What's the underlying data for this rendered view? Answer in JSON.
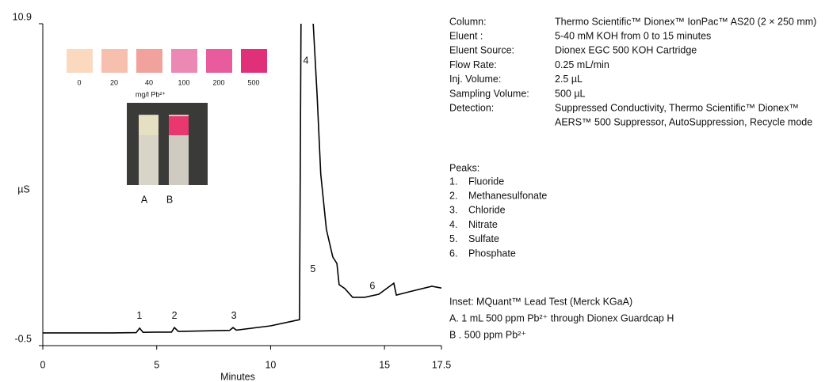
{
  "chart_data": {
    "type": "line",
    "y_label": "µS",
    "x_label": "Minutes",
    "x": [
      0,
      3,
      4.1,
      4.25,
      4.4,
      5.0,
      5.65,
      5.78,
      5.95,
      7.0,
      8.2,
      8.35,
      8.5,
      10.0,
      11.27,
      11.34,
      11.87,
      12.04,
      12.2,
      12.45,
      12.73,
      12.91,
      13.01,
      13.26,
      13.6,
      14.13,
      14.75,
      15.41,
      15.52,
      16.2,
      17.08,
      17.5
    ],
    "values": [
      -0.05,
      -0.05,
      -0.04,
      0.12,
      -0.03,
      -0.02,
      -0.02,
      0.14,
      0.0,
      0.02,
      0.04,
      0.14,
      0.05,
      0.2,
      0.42,
      11.5,
      10.9,
      8.38,
      5.58,
      3.62,
      2.64,
      2.41,
      1.66,
      1.52,
      1.21,
      1.21,
      1.32,
      1.71,
      1.29,
      1.43,
      1.6,
      1.54
    ],
    "color": "#000000",
    "xlim": [
      0,
      17.5
    ],
    "xticks": [
      0,
      5,
      10,
      15,
      17.5
    ],
    "ylim": [
      -0.5,
      10.9
    ],
    "yticks": [
      -0.5,
      10.9
    ],
    "peak_labels": [
      {
        "text": "1",
        "x": 4.24,
        "y": 0.54
      },
      {
        "text": "2",
        "x": 5.78,
        "y": 0.54
      },
      {
        "text": "3",
        "x": 8.39,
        "y": 0.54
      },
      {
        "text": "4",
        "x": 11.55,
        "y": 9.58
      },
      {
        "text": "5",
        "x": 11.86,
        "y": 2.2
      },
      {
        "text": "6",
        "x": 14.47,
        "y": 1.6
      }
    ]
  },
  "inset": {
    "swatches": [
      {
        "label": "0",
        "color": "#fbd9bf"
      },
      {
        "label": "20",
        "color": "#f7bfae"
      },
      {
        "label": "40",
        "color": "#f2a29c"
      },
      {
        "label": "100",
        "color": "#ec88b4"
      },
      {
        "label": "200",
        "color": "#e85c9d"
      },
      {
        "label": "500",
        "color": "#e1307a"
      }
    ],
    "unit": "mg/l Pb²⁺",
    "strip_a": "A",
    "strip_b": "B"
  },
  "method": [
    [
      "Column:",
      "Thermo Scientific™ Dionex™ IonPac™ AS20 (2 × 250 mm)"
    ],
    [
      "Eluent :",
      "5-40 mM KOH from 0 to 15 minutes"
    ],
    [
      "Eluent Source:",
      "Dionex EGC 500 KOH Cartridge"
    ],
    [
      "Flow Rate:",
      "0.25 mL/min"
    ],
    [
      "Inj. Volume:",
      "2.5 µL"
    ],
    [
      "Sampling Volume:",
      "500 µL"
    ],
    [
      "Detection:",
      "Suppressed Conductivity, Thermo Scientific™ Dionex™",
      "AERS™ 500 Suppressor, AutoSuppression, Recycle mode"
    ]
  ],
  "peaks": {
    "title": "Peaks:",
    "items": [
      [
        "1.",
        "Fluoride"
      ],
      [
        "2.",
        "Methanesulfonate"
      ],
      [
        "3.",
        "Chloride"
      ],
      [
        "4.",
        "Nitrate"
      ],
      [
        "5.",
        "Sulfate"
      ],
      [
        "6.",
        "Phosphate"
      ]
    ]
  },
  "notes": [
    "Inset: MQuant™ Lead Test (Merck KGaA)",
    "A. 1 mL 500 ppm Pb²⁺ through Dionex Guardcap H",
    "B . 500 ppm Pb²⁺"
  ]
}
